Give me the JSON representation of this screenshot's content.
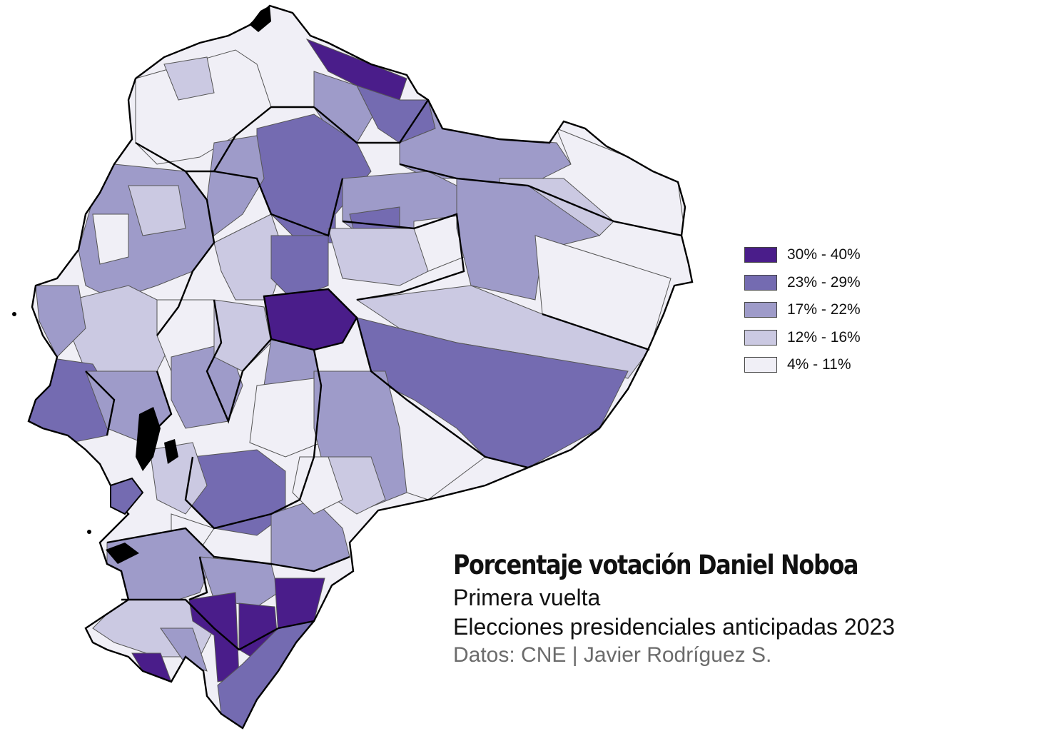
{
  "title": "Porcentaje votación Daniel Noboa",
  "subtitle": "Primera vuelta",
  "subtitle2": "Elecciones presidenciales anticipadas 2023",
  "credits": "Datos: CNE | Javier Rodríguez S.",
  "legend": [
    {
      "label": "30% - 40%",
      "color": "#4a1d8a"
    },
    {
      "label": "23% - 29%",
      "color": "#746bb1"
    },
    {
      "label": "17% - 22%",
      "color": "#9e9bc9"
    },
    {
      "label": "12% - 16%",
      "color": "#cbc9e2"
    },
    {
      "label": "4% - 11%",
      "color": "#f0eff6"
    }
  ]
}
